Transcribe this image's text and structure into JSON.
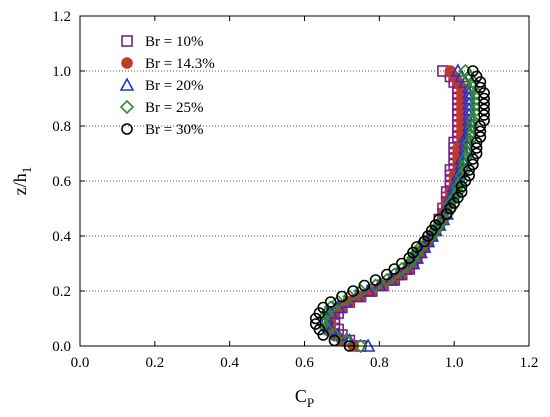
{
  "chart_data": {
    "type": "scatter",
    "xlabel": "C",
    "xlabel_sub": "P",
    "ylabel": "z/h",
    "ylabel_sub": "1",
    "xlim": [
      0.0,
      1.2
    ],
    "ylim": [
      0.0,
      1.2
    ],
    "xticks": [
      "0.0",
      "0.2",
      "0.4",
      "0.6",
      "0.8",
      "1.0",
      "1.2"
    ],
    "yticks": [
      "0.0",
      "0.2",
      "0.4",
      "0.6",
      "0.8",
      "1.0",
      "1.2"
    ],
    "grid": "horizontal dotted",
    "legend_position": "top-left",
    "series": [
      {
        "name": "Br = 10%",
        "marker": "square",
        "color": "#7b1f8c",
        "filled": false,
        "points": [
          [
            0.75,
            0.0
          ],
          [
            0.72,
            0.02
          ],
          [
            0.7,
            0.04
          ],
          [
            0.69,
            0.06
          ],
          [
            0.68,
            0.08
          ],
          [
            0.68,
            0.1
          ],
          [
            0.69,
            0.12
          ],
          [
            0.7,
            0.14
          ],
          [
            0.72,
            0.16
          ],
          [
            0.75,
            0.18
          ],
          [
            0.78,
            0.2
          ],
          [
            0.81,
            0.22
          ],
          [
            0.84,
            0.24
          ],
          [
            0.86,
            0.26
          ],
          [
            0.88,
            0.28
          ],
          [
            0.89,
            0.3
          ],
          [
            0.9,
            0.32
          ],
          [
            0.91,
            0.34
          ],
          [
            0.92,
            0.36
          ],
          [
            0.93,
            0.38
          ],
          [
            0.94,
            0.4
          ],
          [
            0.95,
            0.42
          ],
          [
            0.96,
            0.44
          ],
          [
            0.96,
            0.46
          ],
          [
            0.97,
            0.48
          ],
          [
            0.97,
            0.5
          ],
          [
            0.98,
            0.52
          ],
          [
            0.98,
            0.54
          ],
          [
            0.98,
            0.56
          ],
          [
            0.99,
            0.58
          ],
          [
            0.99,
            0.6
          ],
          [
            0.99,
            0.62
          ],
          [
            0.99,
            0.64
          ],
          [
            1.0,
            0.66
          ],
          [
            1.0,
            0.68
          ],
          [
            1.0,
            0.7
          ],
          [
            1.0,
            0.72
          ],
          [
            1.0,
            0.74
          ],
          [
            1.01,
            0.76
          ],
          [
            1.01,
            0.78
          ],
          [
            1.01,
            0.8
          ],
          [
            1.01,
            0.82
          ],
          [
            1.01,
            0.84
          ],
          [
            1.01,
            0.86
          ],
          [
            1.01,
            0.88
          ],
          [
            1.01,
            0.9
          ],
          [
            1.01,
            0.92
          ],
          [
            1.01,
            0.94
          ],
          [
            1.0,
            0.96
          ],
          [
            0.99,
            0.98
          ],
          [
            0.97,
            1.0
          ]
        ]
      },
      {
        "name": "Br = 14.3%",
        "marker": "circle",
        "color": "#c0392b",
        "filled": true,
        "points": [
          [
            0.73,
            0.0
          ],
          [
            0.7,
            0.02
          ],
          [
            0.68,
            0.04
          ],
          [
            0.67,
            0.06
          ],
          [
            0.67,
            0.08
          ],
          [
            0.67,
            0.1
          ],
          [
            0.68,
            0.12
          ],
          [
            0.7,
            0.14
          ],
          [
            0.72,
            0.16
          ],
          [
            0.75,
            0.18
          ],
          [
            0.78,
            0.2
          ],
          [
            0.81,
            0.22
          ],
          [
            0.84,
            0.24
          ],
          [
            0.86,
            0.26
          ],
          [
            0.88,
            0.28
          ],
          [
            0.89,
            0.3
          ],
          [
            0.9,
            0.32
          ],
          [
            0.91,
            0.34
          ],
          [
            0.92,
            0.36
          ],
          [
            0.93,
            0.38
          ],
          [
            0.94,
            0.4
          ],
          [
            0.95,
            0.42
          ],
          [
            0.96,
            0.44
          ],
          [
            0.97,
            0.46
          ],
          [
            0.97,
            0.48
          ],
          [
            0.98,
            0.5
          ],
          [
            0.98,
            0.52
          ],
          [
            0.99,
            0.54
          ],
          [
            0.99,
            0.56
          ],
          [
            1.0,
            0.58
          ],
          [
            1.0,
            0.6
          ],
          [
            1.0,
            0.62
          ],
          [
            1.01,
            0.64
          ],
          [
            1.01,
            0.66
          ],
          [
            1.01,
            0.68
          ],
          [
            1.01,
            0.7
          ],
          [
            1.01,
            0.72
          ],
          [
            1.02,
            0.74
          ],
          [
            1.02,
            0.76
          ],
          [
            1.02,
            0.78
          ],
          [
            1.02,
            0.8
          ],
          [
            1.02,
            0.82
          ],
          [
            1.02,
            0.84
          ],
          [
            1.02,
            0.86
          ],
          [
            1.02,
            0.88
          ],
          [
            1.02,
            0.9
          ],
          [
            1.02,
            0.92
          ],
          [
            1.02,
            0.94
          ],
          [
            1.01,
            0.96
          ],
          [
            1.0,
            0.98
          ],
          [
            0.99,
            1.0
          ]
        ]
      },
      {
        "name": "Br = 20%",
        "marker": "triangle",
        "color": "#2233cc",
        "filled": false,
        "points": [
          [
            0.77,
            0.0
          ],
          [
            0.72,
            0.02
          ],
          [
            0.69,
            0.04
          ],
          [
            0.67,
            0.06
          ],
          [
            0.66,
            0.08
          ],
          [
            0.66,
            0.1
          ],
          [
            0.67,
            0.12
          ],
          [
            0.69,
            0.14
          ],
          [
            0.71,
            0.16
          ],
          [
            0.74,
            0.18
          ],
          [
            0.77,
            0.2
          ],
          [
            0.8,
            0.22
          ],
          [
            0.83,
            0.24
          ],
          [
            0.85,
            0.26
          ],
          [
            0.87,
            0.28
          ],
          [
            0.89,
            0.3
          ],
          [
            0.9,
            0.32
          ],
          [
            0.91,
            0.34
          ],
          [
            0.92,
            0.36
          ],
          [
            0.93,
            0.38
          ],
          [
            0.94,
            0.4
          ],
          [
            0.95,
            0.42
          ],
          [
            0.96,
            0.44
          ],
          [
            0.97,
            0.46
          ],
          [
            0.98,
            0.48
          ],
          [
            0.98,
            0.5
          ],
          [
            0.99,
            0.52
          ],
          [
            0.99,
            0.54
          ],
          [
            1.0,
            0.56
          ],
          [
            1.0,
            0.58
          ],
          [
            1.01,
            0.6
          ],
          [
            1.01,
            0.62
          ],
          [
            1.02,
            0.64
          ],
          [
            1.02,
            0.66
          ],
          [
            1.02,
            0.68
          ],
          [
            1.03,
            0.7
          ],
          [
            1.03,
            0.72
          ],
          [
            1.03,
            0.74
          ],
          [
            1.03,
            0.76
          ],
          [
            1.04,
            0.78
          ],
          [
            1.04,
            0.8
          ],
          [
            1.04,
            0.82
          ],
          [
            1.04,
            0.84
          ],
          [
            1.04,
            0.86
          ],
          [
            1.04,
            0.88
          ],
          [
            1.04,
            0.9
          ],
          [
            1.04,
            0.92
          ],
          [
            1.04,
            0.94
          ],
          [
            1.03,
            0.96
          ],
          [
            1.02,
            0.98
          ],
          [
            1.01,
            1.0
          ]
        ]
      },
      {
        "name": "Br = 25%",
        "marker": "diamond",
        "color": "#2e8b2e",
        "filled": false,
        "points": [
          [
            0.75,
            0.0
          ],
          [
            0.71,
            0.02
          ],
          [
            0.68,
            0.04
          ],
          [
            0.66,
            0.06
          ],
          [
            0.65,
            0.08
          ],
          [
            0.65,
            0.1
          ],
          [
            0.66,
            0.12
          ],
          [
            0.67,
            0.14
          ],
          [
            0.69,
            0.16
          ],
          [
            0.72,
            0.18
          ],
          [
            0.75,
            0.2
          ],
          [
            0.79,
            0.22
          ],
          [
            0.82,
            0.24
          ],
          [
            0.84,
            0.26
          ],
          [
            0.86,
            0.28
          ],
          [
            0.88,
            0.3
          ],
          [
            0.89,
            0.32
          ],
          [
            0.9,
            0.34
          ],
          [
            0.91,
            0.36
          ],
          [
            0.92,
            0.38
          ],
          [
            0.94,
            0.4
          ],
          [
            0.95,
            0.42
          ],
          [
            0.96,
            0.44
          ],
          [
            0.97,
            0.46
          ],
          [
            0.98,
            0.48
          ],
          [
            0.99,
            0.5
          ],
          [
            0.99,
            0.52
          ],
          [
            1.0,
            0.54
          ],
          [
            1.01,
            0.56
          ],
          [
            1.01,
            0.58
          ],
          [
            1.02,
            0.6
          ],
          [
            1.02,
            0.62
          ],
          [
            1.03,
            0.64
          ],
          [
            1.03,
            0.66
          ],
          [
            1.03,
            0.68
          ],
          [
            1.04,
            0.7
          ],
          [
            1.04,
            0.72
          ],
          [
            1.04,
            0.74
          ],
          [
            1.05,
            0.76
          ],
          [
            1.05,
            0.78
          ],
          [
            1.05,
            0.8
          ],
          [
            1.05,
            0.82
          ],
          [
            1.06,
            0.84
          ],
          [
            1.06,
            0.86
          ],
          [
            1.06,
            0.88
          ],
          [
            1.06,
            0.9
          ],
          [
            1.06,
            0.92
          ],
          [
            1.05,
            0.94
          ],
          [
            1.05,
            0.96
          ],
          [
            1.04,
            0.98
          ],
          [
            1.03,
            1.0
          ]
        ]
      },
      {
        "name": "Br = 30%",
        "marker": "circle",
        "color": "#000000",
        "filled": false,
        "points": [
          [
            0.72,
            0.0
          ],
          [
            0.68,
            0.02
          ],
          [
            0.65,
            0.04
          ],
          [
            0.64,
            0.06
          ],
          [
            0.63,
            0.08
          ],
          [
            0.63,
            0.1
          ],
          [
            0.64,
            0.12
          ],
          [
            0.65,
            0.14
          ],
          [
            0.67,
            0.16
          ],
          [
            0.7,
            0.18
          ],
          [
            0.73,
            0.2
          ],
          [
            0.76,
            0.22
          ],
          [
            0.79,
            0.24
          ],
          [
            0.82,
            0.26
          ],
          [
            0.84,
            0.28
          ],
          [
            0.86,
            0.3
          ],
          [
            0.88,
            0.32
          ],
          [
            0.89,
            0.34
          ],
          [
            0.9,
            0.36
          ],
          [
            0.92,
            0.38
          ],
          [
            0.93,
            0.4
          ],
          [
            0.94,
            0.42
          ],
          [
            0.95,
            0.44
          ],
          [
            0.96,
            0.46
          ],
          [
            0.98,
            0.48
          ],
          [
            0.99,
            0.5
          ],
          [
            1.0,
            0.52
          ],
          [
            1.01,
            0.54
          ],
          [
            1.02,
            0.56
          ],
          [
            1.02,
            0.58
          ],
          [
            1.03,
            0.6
          ],
          [
            1.04,
            0.62
          ],
          [
            1.04,
            0.64
          ],
          [
            1.05,
            0.66
          ],
          [
            1.05,
            0.68
          ],
          [
            1.06,
            0.7
          ],
          [
            1.06,
            0.72
          ],
          [
            1.06,
            0.74
          ],
          [
            1.07,
            0.76
          ],
          [
            1.07,
            0.78
          ],
          [
            1.07,
            0.8
          ],
          [
            1.08,
            0.82
          ],
          [
            1.08,
            0.84
          ],
          [
            1.08,
            0.86
          ],
          [
            1.08,
            0.88
          ],
          [
            1.08,
            0.9
          ],
          [
            1.08,
            0.92
          ],
          [
            1.07,
            0.94
          ],
          [
            1.07,
            0.96
          ],
          [
            1.06,
            0.98
          ],
          [
            1.05,
            1.0
          ]
        ]
      }
    ]
  }
}
